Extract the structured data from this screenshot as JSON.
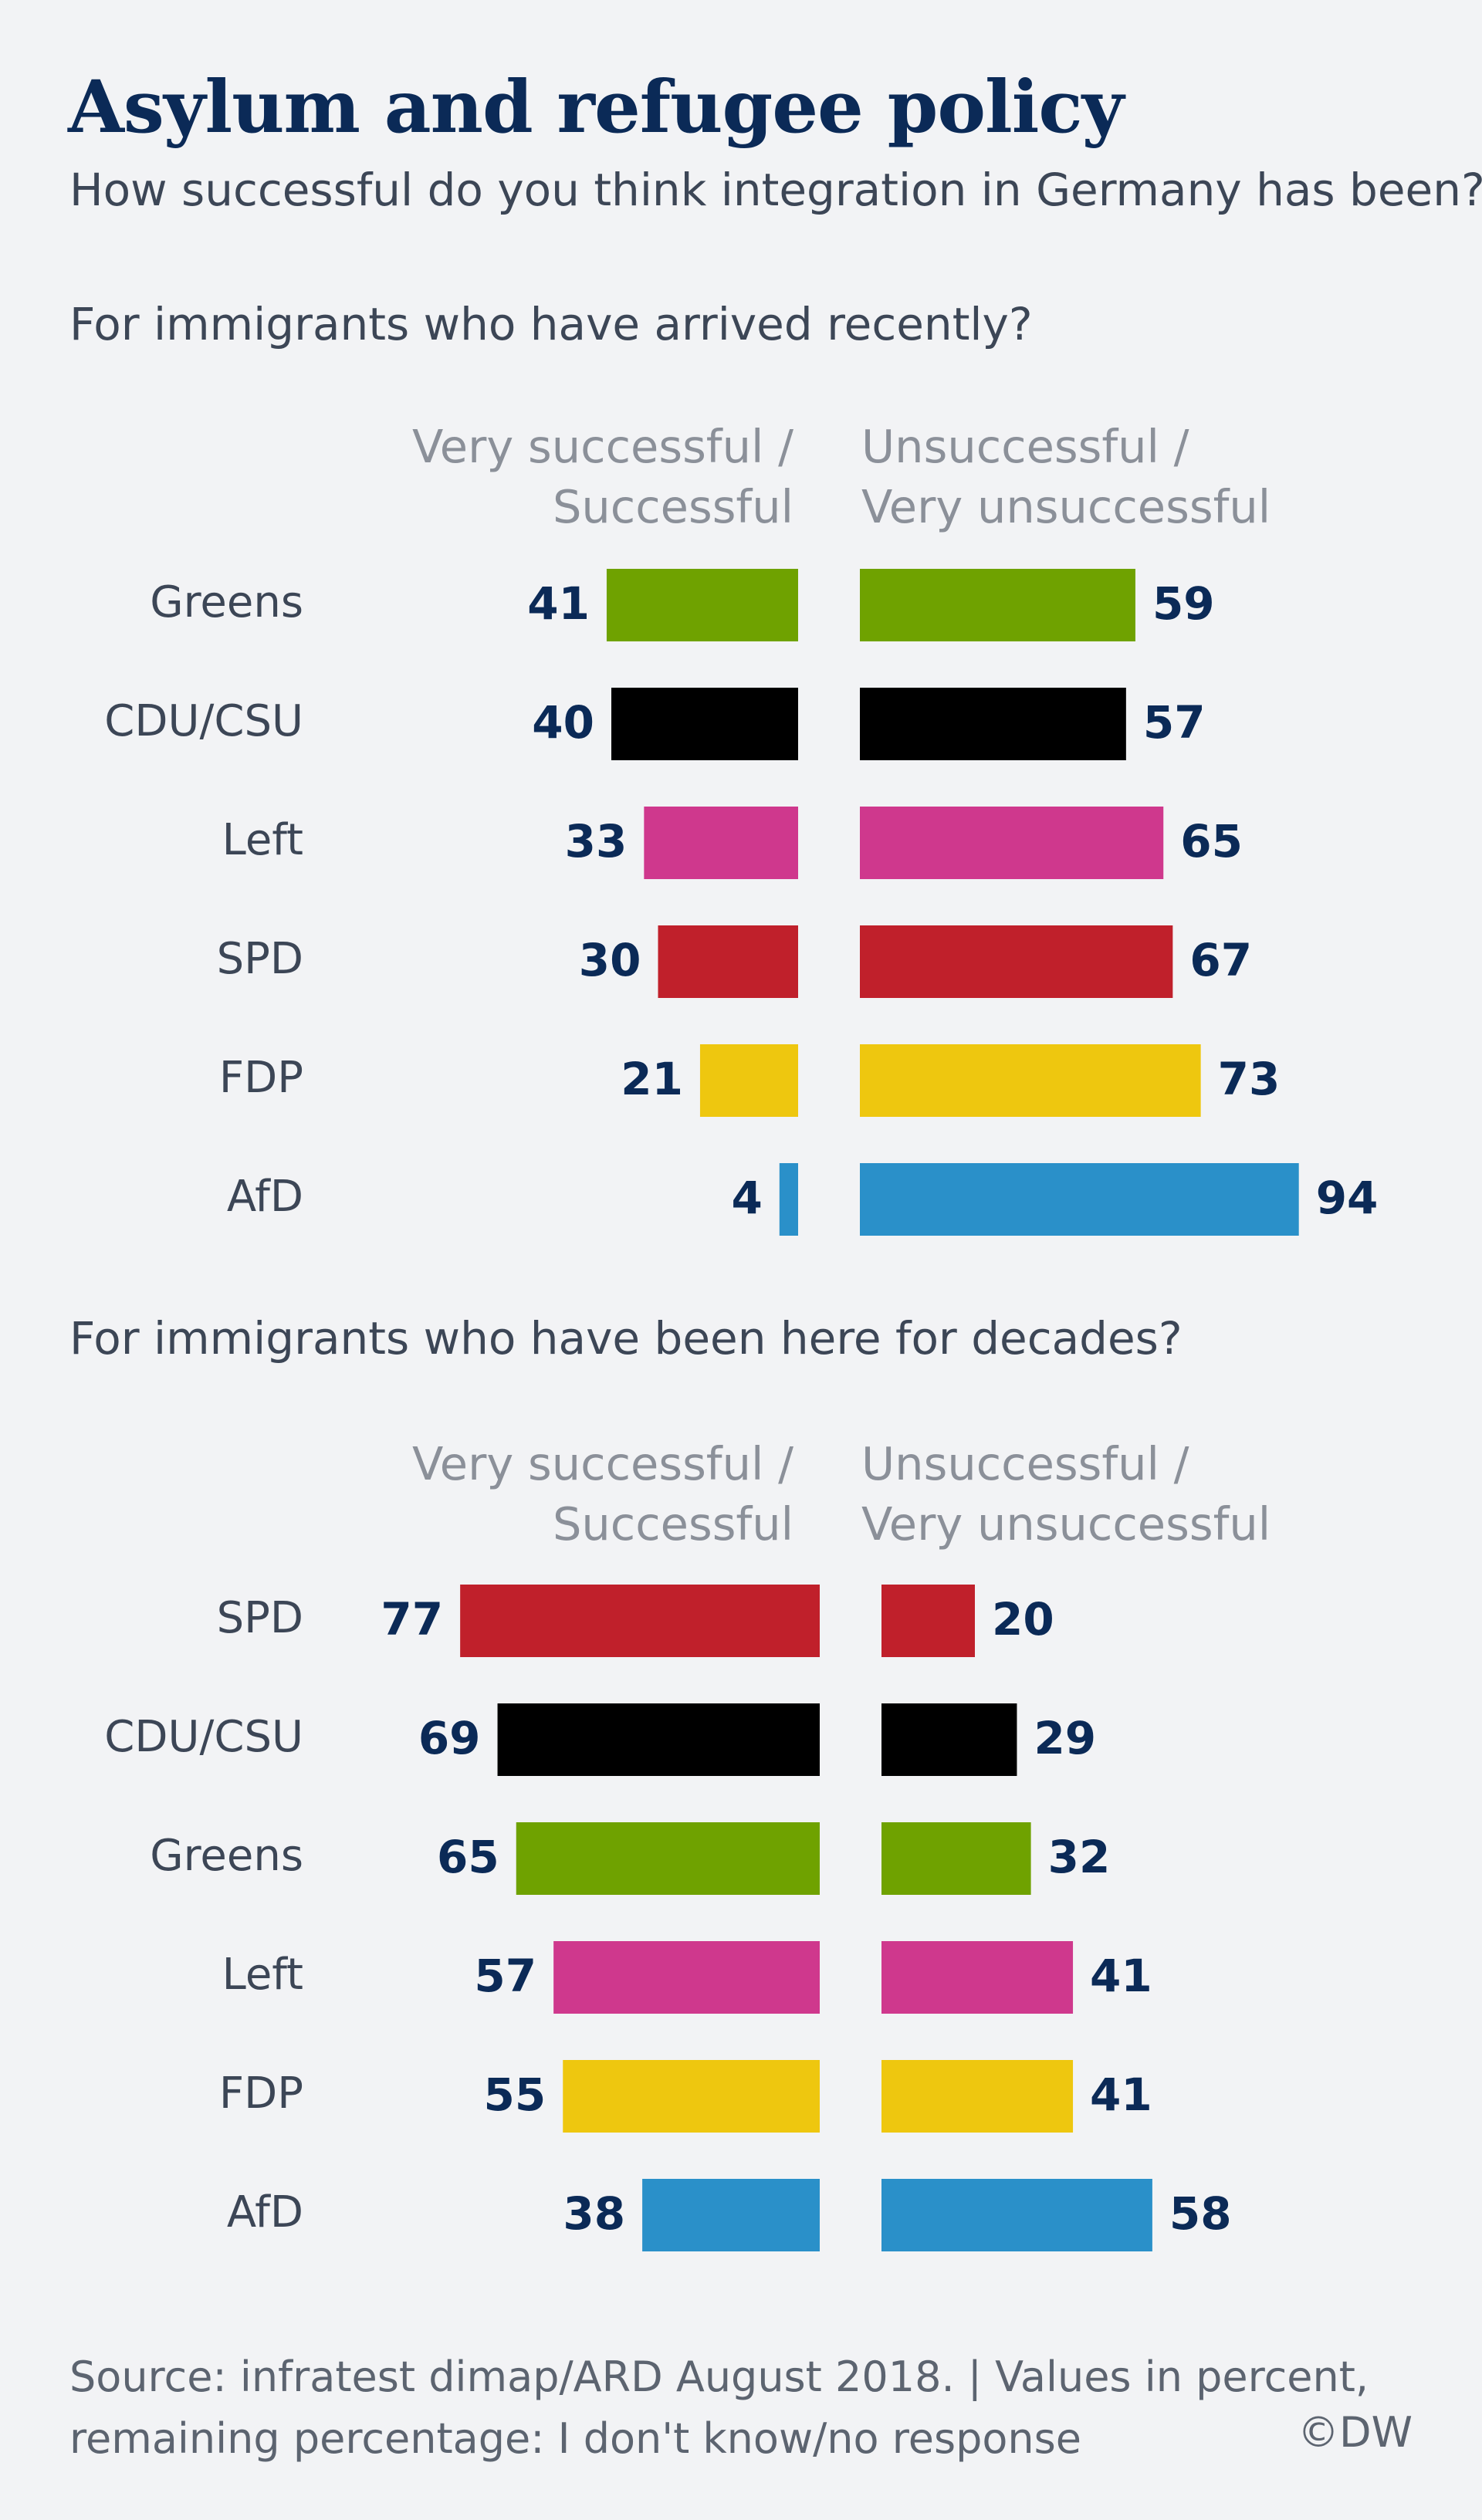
{
  "title": "Asylum and refugee policy",
  "subtitle": "How successful do you think integration in Germany has been?",
  "colors": {
    "Greens": "#6fa200",
    "CDU/CSU": "#000000",
    "Left": "#cf388d",
    "SPD": "#c0202b",
    "FDP": "#eec70f",
    "AfD": "#2a90c9"
  },
  "chart_data": [
    {
      "type": "bar",
      "orientation": "horizontal-diverging",
      "title": "For immigrants who have arrived recently?",
      "left_header_line1": "Very successful /",
      "left_header_line2": "Successful",
      "right_header_line1": "Unsuccessful /",
      "right_header_line2": "Very unsuccessful",
      "categories": [
        "Greens",
        "CDU/CSU",
        "Left",
        "SPD",
        "FDP",
        "AfD"
      ],
      "series": [
        {
          "name": "Very successful / Successful",
          "values": [
            41,
            40,
            33,
            30,
            21,
            4
          ]
        },
        {
          "name": "Unsuccessful / Very unsuccessful",
          "values": [
            59,
            57,
            65,
            67,
            73,
            94
          ]
        }
      ],
      "unit": "percent"
    },
    {
      "type": "bar",
      "orientation": "horizontal-diverging",
      "title": "For immigrants who have been here for decades?",
      "left_header_line1": "Very successful /",
      "left_header_line2": "Successful",
      "right_header_line1": "Unsuccessful /",
      "right_header_line2": "Very unsuccessful",
      "categories": [
        "SPD",
        "CDU/CSU",
        "Greens",
        "Left",
        "FDP",
        "AfD"
      ],
      "series": [
        {
          "name": "Very successful / Successful",
          "values": [
            77,
            69,
            65,
            57,
            55,
            38
          ]
        },
        {
          "name": "Unsuccessful / Very unsuccessful",
          "values": [
            20,
            29,
            32,
            41,
            41,
            58
          ]
        }
      ],
      "unit": "percent"
    }
  ],
  "footer": {
    "line1": "Source: infratest dimap/ARD August 2018. | Values in percent,",
    "line2": "remaining percentage: I don't know/no response",
    "credit": "©DW"
  }
}
